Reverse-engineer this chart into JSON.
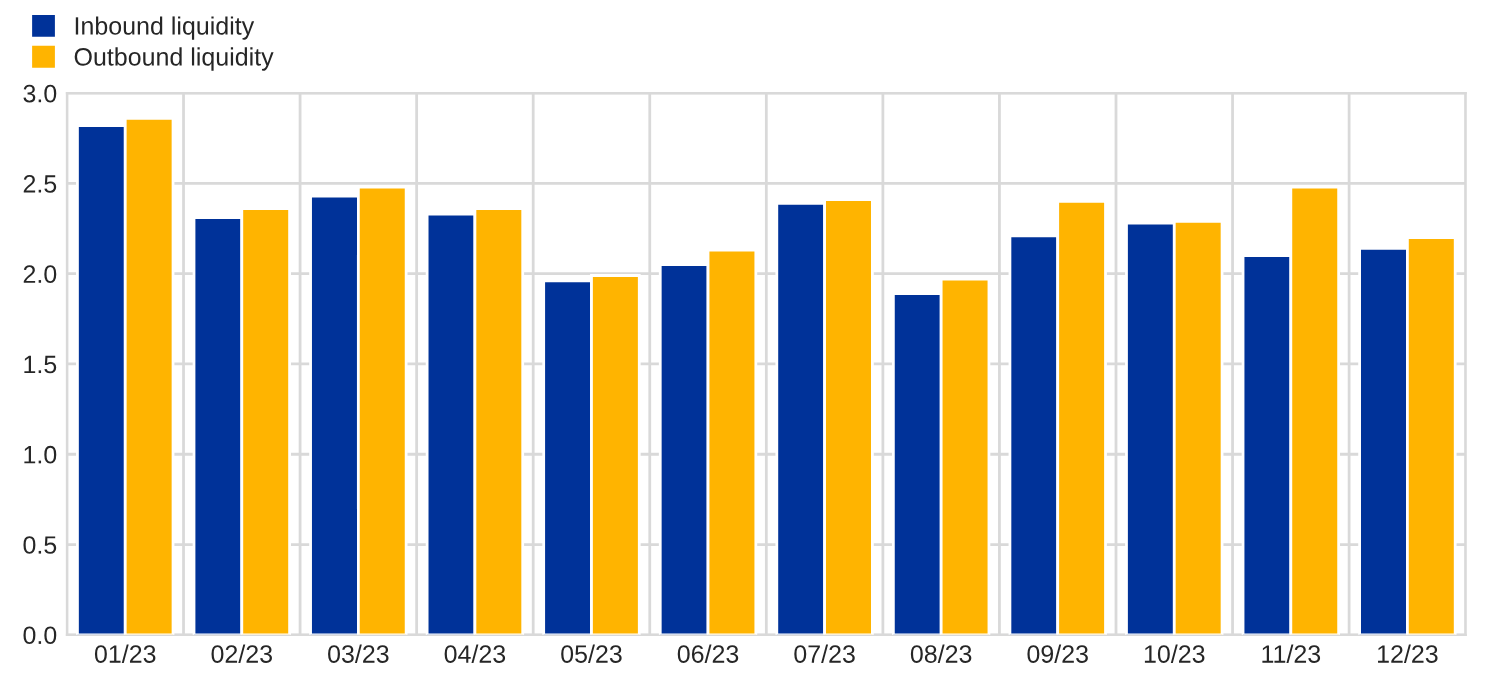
{
  "chart_data": {
    "type": "bar",
    "categories": [
      "01/23",
      "02/23",
      "03/23",
      "04/23",
      "05/23",
      "06/23",
      "07/23",
      "08/23",
      "09/23",
      "10/23",
      "11/23",
      "12/23"
    ],
    "series": [
      {
        "name": "Inbound liquidity",
        "color": "#003299",
        "values": [
          2.82,
          2.31,
          2.43,
          2.33,
          1.96,
          2.05,
          2.39,
          1.89,
          2.21,
          2.28,
          2.1,
          2.14
        ]
      },
      {
        "name": "Outbound liquidity",
        "color": "#ffb400",
        "values": [
          2.86,
          2.36,
          2.48,
          2.36,
          1.99,
          2.13,
          2.41,
          1.97,
          2.4,
          2.29,
          2.48,
          2.2
        ]
      }
    ],
    "ylim": [
      0,
      3.0
    ],
    "yticks": [
      {
        "value": 0,
        "label": "0.0"
      },
      0.5,
      {
        "value": 1,
        "label": "1.0"
      },
      1.5,
      {
        "value": 2,
        "label": "2.0"
      },
      2.5,
      {
        "value": 3,
        "label": "3.0"
      }
    ],
    "grid": true,
    "legend": "top left"
  }
}
